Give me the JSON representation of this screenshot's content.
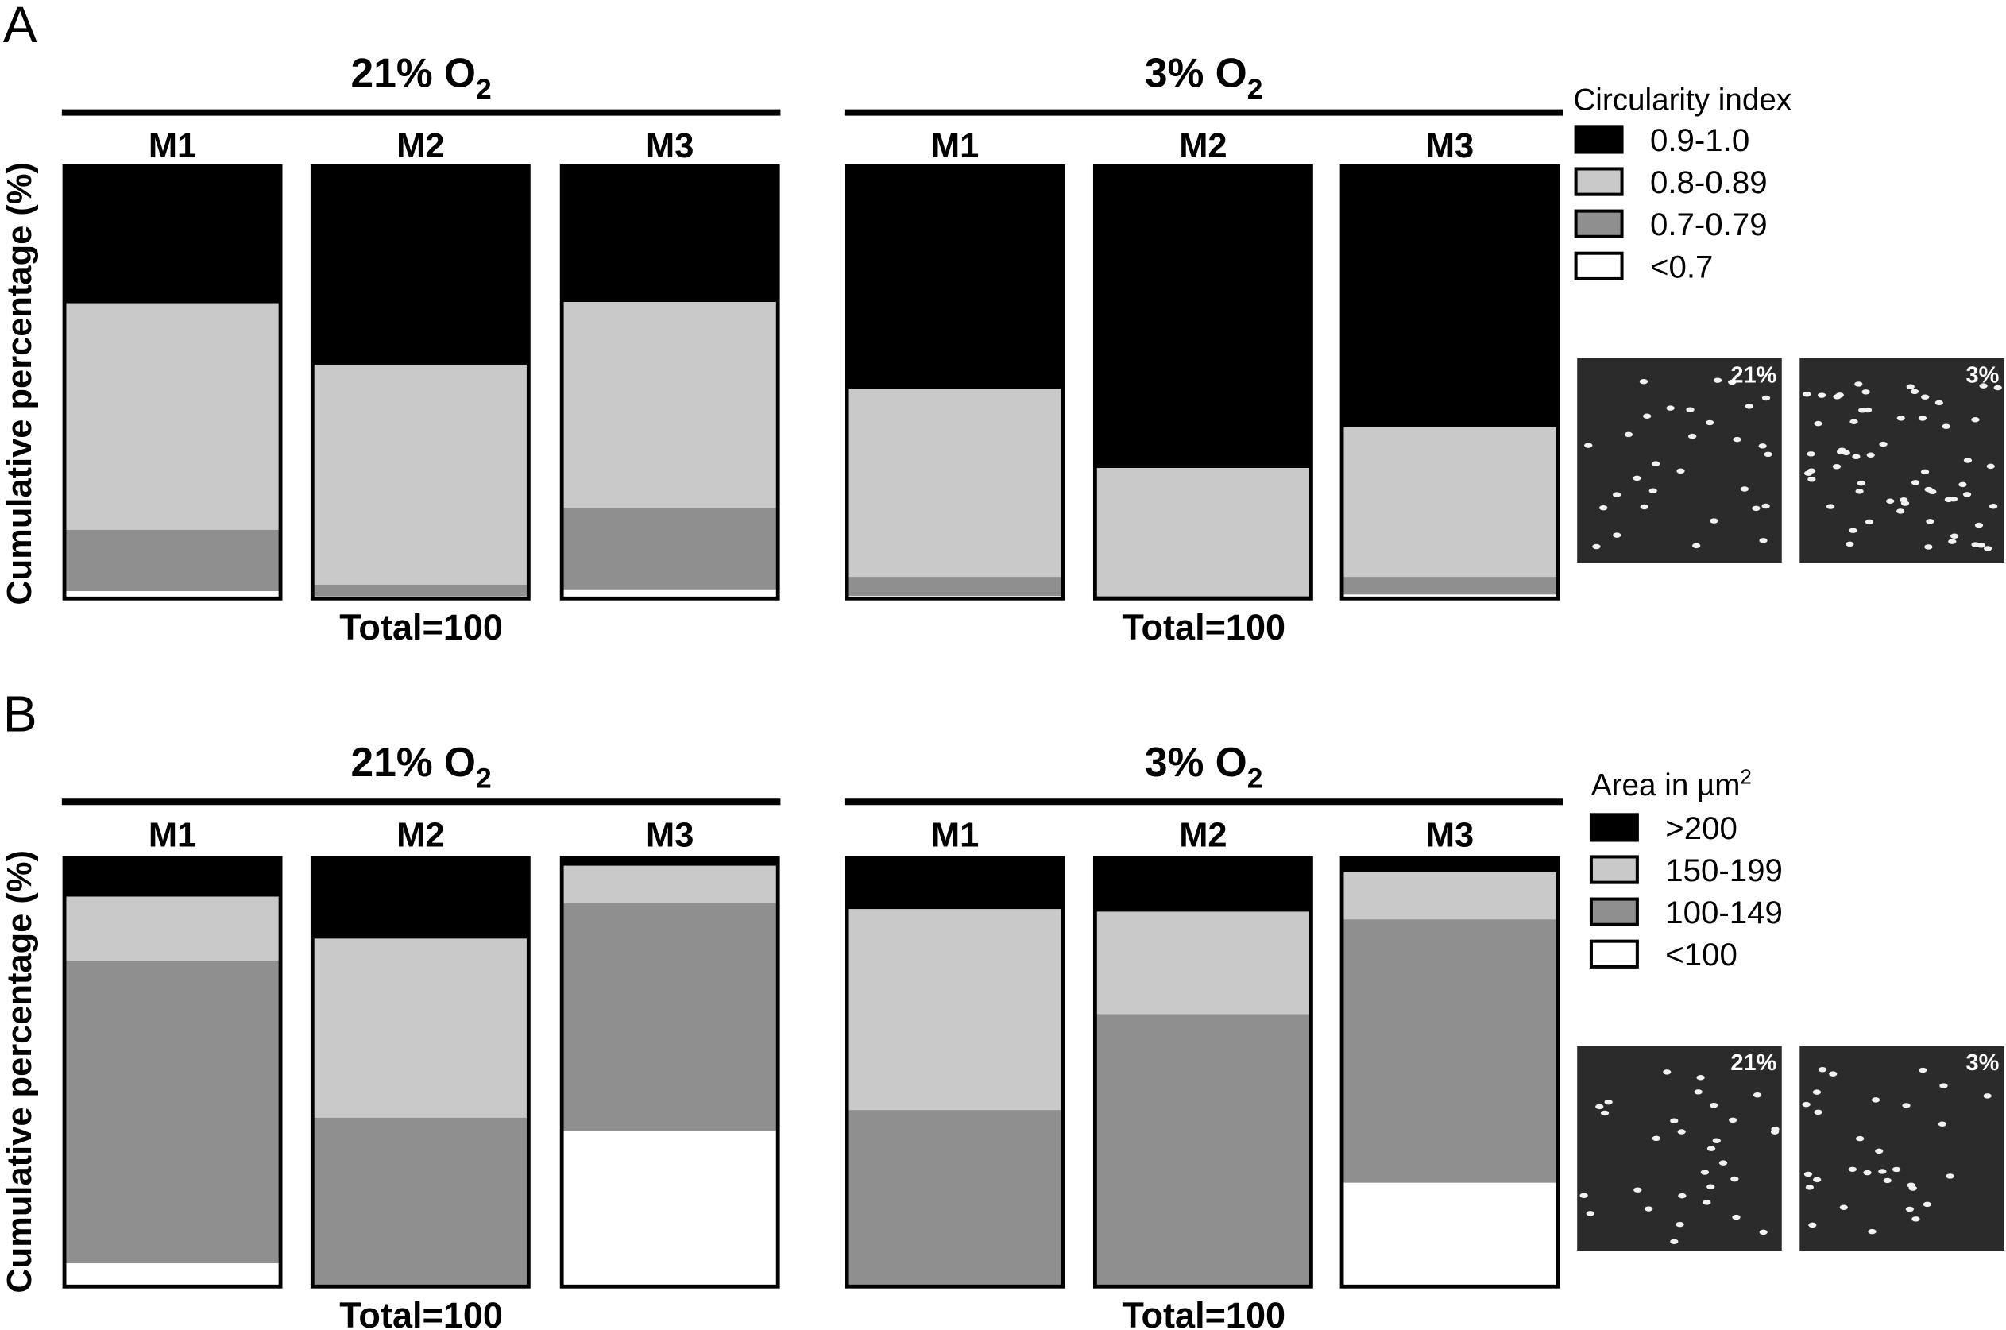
{
  "colors": {
    "black": "#000000",
    "light": "#c9c9c9",
    "dark": "#8f8f8f",
    "white": "#ffffff",
    "image_bg": "#2b2b2b"
  },
  "chart_data": [
    {
      "type": "bar",
      "stacked": true,
      "panel": "A",
      "ylabel": "Cumulative percentage (%)",
      "total_label": "Total=100",
      "legend_title": "Circularity index",
      "legend": [
        "0.9-1.0",
        "0.8-0.89",
        "0.7-0.79",
        "<0.7"
      ],
      "legend_placement": "right",
      "groups": [
        {
          "title_main": "21% O",
          "title_sub": "2",
          "categories": [
            "M1",
            "M2",
            "M3"
          ],
          "series": [
            {
              "name": "0.9-1.0",
              "values": [
                31.7,
                45.9,
                31.4
              ]
            },
            {
              "name": "0.8-0.89",
              "values": [
                52.4,
                50.9,
                47.6
              ]
            },
            {
              "name": "0.7-0.79",
              "values": [
                14.2,
                2.7,
                18.9
              ]
            },
            {
              "name": "<0.7",
              "values": [
                1.7,
                0.5,
                2.1
              ]
            }
          ]
        },
        {
          "title_main": "3% O",
          "title_sub": "2",
          "categories": [
            "M1",
            "M2",
            "M3"
          ],
          "series": [
            {
              "name": "0.9-1.0",
              "values": [
                51.5,
                69.8,
                60.4
              ]
            },
            {
              "name": "0.8-0.89",
              "values": [
                43.5,
                29.6,
                34.6
              ]
            },
            {
              "name": "0.7-0.79",
              "values": [
                4.4,
                0.4,
                4.1
              ]
            },
            {
              "name": "<0.7",
              "values": [
                0.6,
                0.2,
                0.9
              ]
            }
          ]
        }
      ],
      "images": [
        "21%",
        "3%"
      ]
    },
    {
      "type": "bar",
      "stacked": true,
      "panel": "B",
      "ylabel": "Cumulative percentage (%)",
      "total_label": "Total=100",
      "legend_title_main": "Area in µm",
      "legend_title_sup": "2",
      "legend": [
        ">200",
        "150-199",
        "100-149",
        "<100"
      ],
      "legend_placement": "right",
      "groups": [
        {
          "title_main": "21% O",
          "title_sub": "2",
          "categories": [
            "M1",
            "M2",
            "M3"
          ],
          "series": [
            {
              "name": ">200",
              "values": [
                9.0,
                18.8,
                1.8
              ]
            },
            {
              "name": "150-199",
              "values": [
                14.9,
                41.8,
                8.7
              ]
            },
            {
              "name": "100-149",
              "values": [
                70.7,
                39.4,
                53.1
              ]
            },
            {
              "name": "<100",
              "values": [
                5.4,
                0.0,
                36.4
              ]
            }
          ]
        },
        {
          "title_main": "3% O",
          "title_sub": "2",
          "categories": [
            "M1",
            "M2",
            "M3"
          ],
          "series": [
            {
              "name": ">200",
              "values": [
                11.9,
                12.5,
                3.3
              ]
            },
            {
              "name": "150-199",
              "values": [
                46.9,
                23.9,
                11.0
              ]
            },
            {
              "name": "100-149",
              "values": [
                41.2,
                63.6,
                61.5
              ]
            },
            {
              "name": "<100",
              "values": [
                0.0,
                0.0,
                24.2
              ]
            }
          ]
        }
      ],
      "images": [
        "21%",
        "3%"
      ]
    }
  ]
}
